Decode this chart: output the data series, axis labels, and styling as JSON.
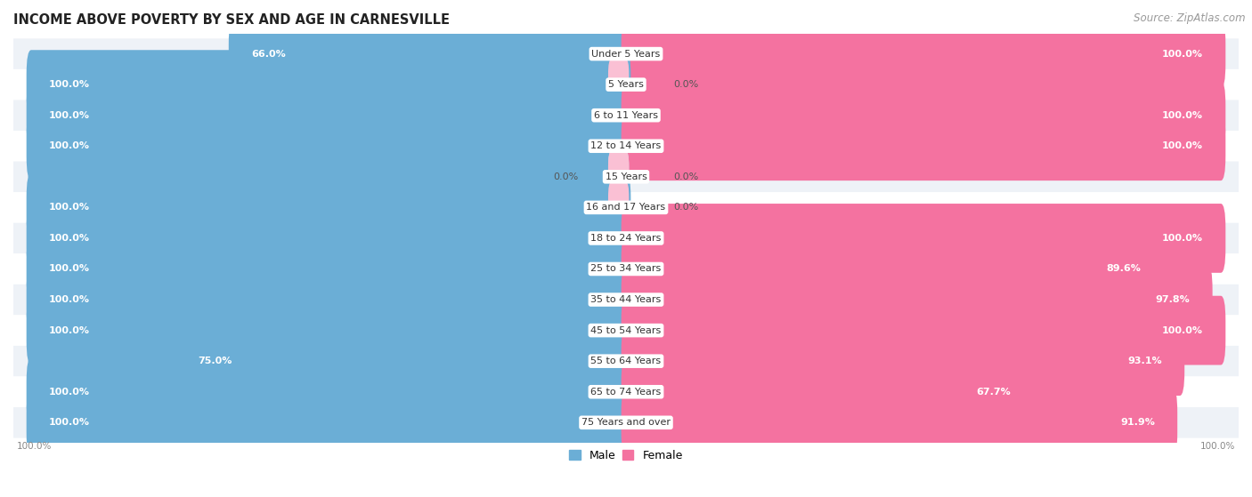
{
  "title": "INCOME ABOVE POVERTY BY SEX AND AGE IN CARNESVILLE",
  "source": "Source: ZipAtlas.com",
  "categories": [
    "Under 5 Years",
    "5 Years",
    "6 to 11 Years",
    "12 to 14 Years",
    "15 Years",
    "16 and 17 Years",
    "18 to 24 Years",
    "25 to 34 Years",
    "35 to 44 Years",
    "45 to 54 Years",
    "55 to 64 Years",
    "65 to 74 Years",
    "75 Years and over"
  ],
  "male": [
    66.0,
    100.0,
    100.0,
    100.0,
    0.0,
    100.0,
    100.0,
    100.0,
    100.0,
    100.0,
    75.0,
    100.0,
    100.0
  ],
  "female": [
    100.0,
    0.0,
    100.0,
    100.0,
    0.0,
    0.0,
    100.0,
    89.6,
    97.8,
    100.0,
    93.1,
    67.7,
    91.9
  ],
  "male_color": "#6baed6",
  "female_color": "#f472a0",
  "male_color_light": "#c6dcf0",
  "female_color_light": "#fac0d4",
  "bg_row_odd": "#eef2f7",
  "bg_row_even": "#ffffff",
  "title_fontsize": 10.5,
  "source_fontsize": 8.5,
  "cat_label_fontsize": 8,
  "bar_label_fontsize": 8,
  "legend_fontsize": 9
}
